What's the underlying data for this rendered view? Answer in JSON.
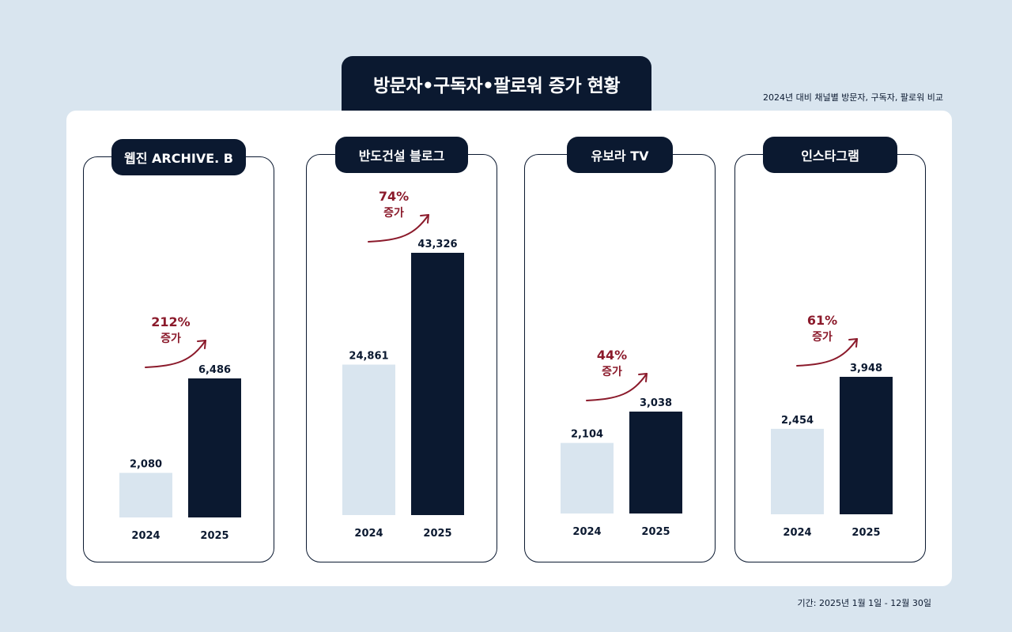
{
  "header": {
    "title": "방문자•구독자•팔로워 증가 현황",
    "subtitle": "2024년 대비 채널별 방문자, 구독자, 팔로워 비교"
  },
  "footer": {
    "period": "기간: 2025년 1월 1일 - 12월 30일"
  },
  "colors": {
    "bar_2024": "#d9e5ef",
    "bar_2025": "#0b1930",
    "growth": "#8b1a2b",
    "background": "#d9e5ef"
  },
  "chart_data": [
    {
      "type": "bar",
      "title": "웹진 ARCHIVE. B",
      "categories": [
        "2024",
        "2025"
      ],
      "values": [
        2080,
        6486
      ],
      "value_labels": [
        "2,080",
        "6,486"
      ],
      "growth_label": "212%",
      "growth_word": "증가"
    },
    {
      "type": "bar",
      "title": "반도건설 블로그",
      "categories": [
        "2024",
        "2025"
      ],
      "values": [
        24861,
        43326
      ],
      "value_labels": [
        "24,861",
        "43,326"
      ],
      "growth_label": "74%",
      "growth_word": "증가"
    },
    {
      "type": "bar",
      "title": "유보라 TV",
      "categories": [
        "2024",
        "2025"
      ],
      "values": [
        2104,
        3038
      ],
      "value_labels": [
        "2,104",
        "3,038"
      ],
      "growth_label": "44%",
      "growth_word": "증가"
    },
    {
      "type": "bar",
      "title": "인스타그램",
      "categories": [
        "2024",
        "2025"
      ],
      "values": [
        2454,
        3948
      ],
      "value_labels": [
        "2,454",
        "3,948"
      ],
      "growth_label": "61%",
      "growth_word": "증가"
    }
  ]
}
